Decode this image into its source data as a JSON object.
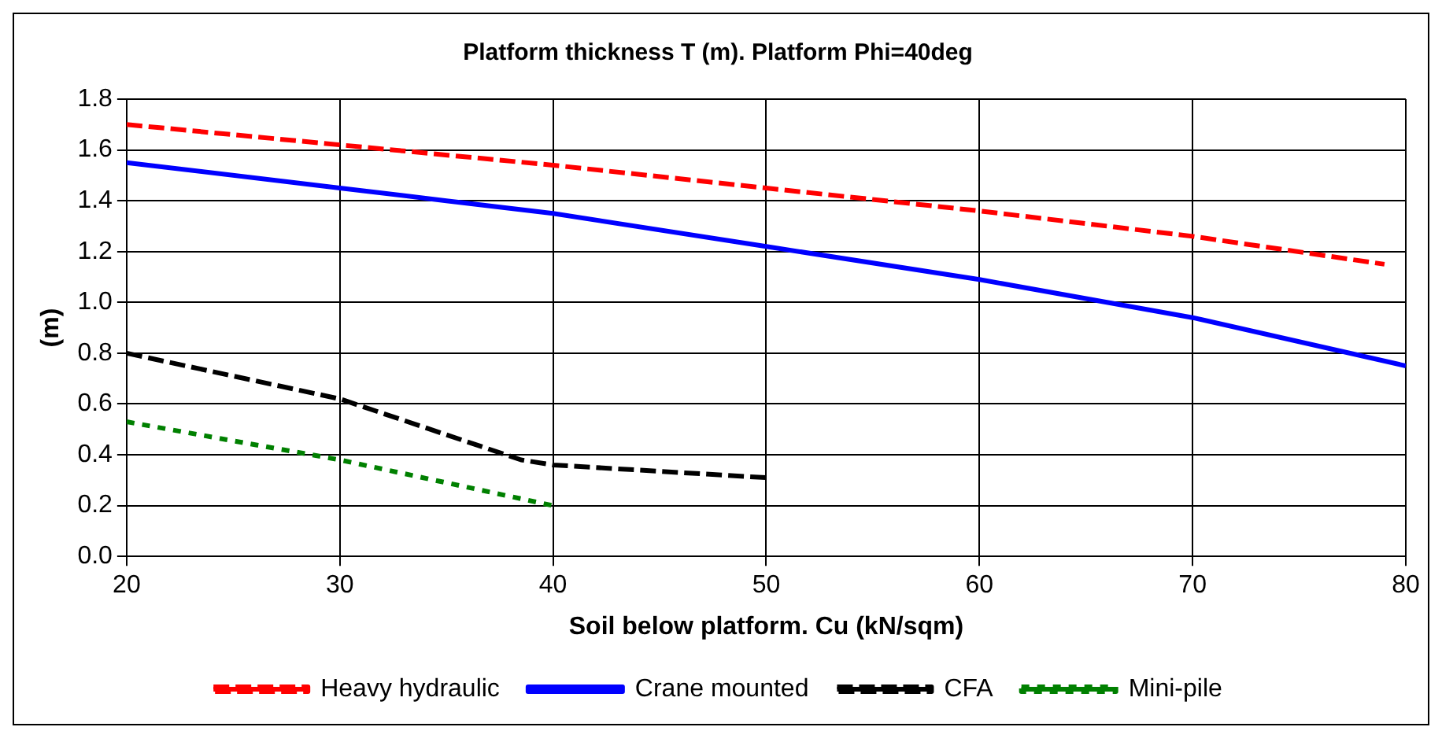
{
  "chart_data": {
    "type": "line",
    "title": "Platform thickness T (m). Platform Phi=40deg",
    "xlabel": "Soil below platform. Cu (kN/sqm)",
    "ylabel": "(m)",
    "xlim": [
      20,
      80
    ],
    "xticks": [
      20,
      30,
      40,
      50,
      60,
      70,
      80
    ],
    "ylim": [
      0,
      1.8
    ],
    "yticks": [
      {
        "value": 0,
        "label": "0.0"
      },
      {
        "value": 0.2,
        "label": "0.2"
      },
      {
        "value": 0.4,
        "label": "0.4"
      },
      {
        "value": 0.6,
        "label": "0.6"
      },
      {
        "value": 0.8,
        "label": "0.8"
      },
      {
        "value": 1,
        "label": "1.0"
      },
      {
        "value": 1.2,
        "label": "1.2"
      },
      {
        "value": 1.4,
        "label": "1.4"
      },
      {
        "value": 1.6,
        "label": "1.6"
      },
      {
        "value": 1.8,
        "label": "1.8"
      }
    ],
    "grid": true,
    "legend": "bottom",
    "marker": "none",
    "series": [
      {
        "name": "Heavy hydraulic",
        "color": "#ff0000",
        "line_style": "dashed",
        "x": [
          20,
          30,
          40,
          50,
          60,
          70,
          79
        ],
        "values": [
          1.7,
          1.62,
          1.54,
          1.45,
          1.36,
          1.26,
          1.15
        ]
      },
      {
        "name": "Crane mounted",
        "color": "#0000ff",
        "line_style": "solid",
        "x": [
          20,
          30,
          35,
          40,
          50,
          60,
          70,
          80
        ],
        "values": [
          1.55,
          1.45,
          1.4,
          1.35,
          1.22,
          1.09,
          0.94,
          0.75
        ]
      },
      {
        "name": "CFA",
        "color": "#000000",
        "line_style": "dashed",
        "x": [
          20,
          30,
          38.5,
          40,
          50
        ],
        "values": [
          0.8,
          0.62,
          0.38,
          0.36,
          0.31
        ]
      },
      {
        "name": "Mini-pile",
        "color": "#008000",
        "line_style": "dotted",
        "x": [
          20,
          30,
          40
        ],
        "values": [
          0.53,
          0.38,
          0.2
        ]
      }
    ]
  }
}
